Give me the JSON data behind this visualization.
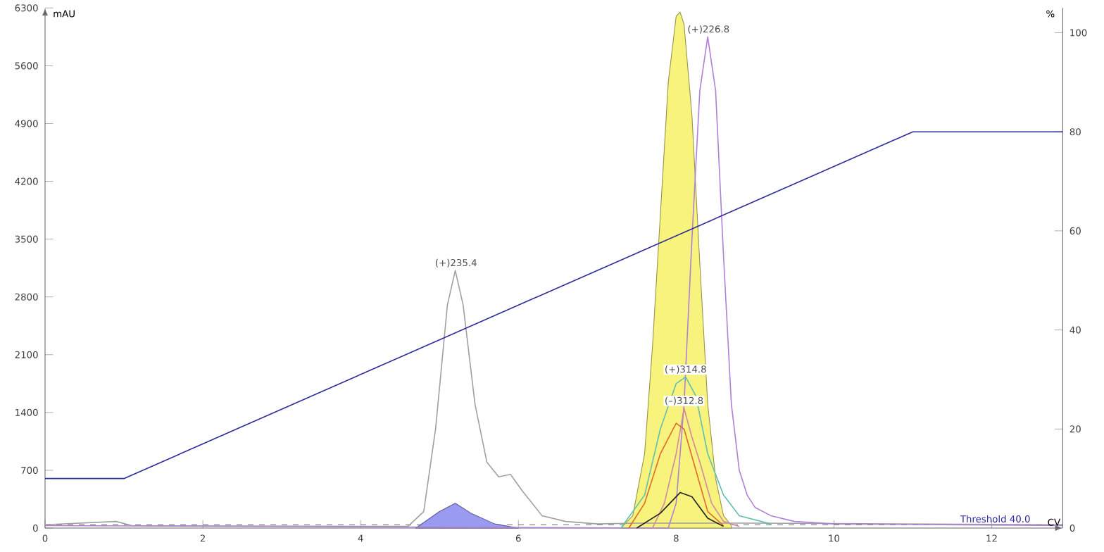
{
  "chart_data": {
    "type": "line",
    "xlabel": "CV",
    "ylabel": "mAU",
    "y2label": "%",
    "xlim": [
      0,
      12.9
    ],
    "xticks": [
      0,
      2,
      4,
      6,
      8,
      10,
      12
    ],
    "ylim": [
      0,
      6300
    ],
    "yticks": [
      0,
      700,
      1400,
      2100,
      2800,
      3500,
      4200,
      4900,
      5600,
      6300
    ],
    "y2lim": [
      0,
      105
    ],
    "y2ticks": [
      0,
      20,
      40,
      60,
      80,
      100
    ],
    "series": [
      {
        "type": "area",
        "color": "#f7f37c",
        "x": [
          7.3,
          7.45,
          7.6,
          7.7,
          7.8,
          7.9,
          8.0,
          8.05,
          8.1,
          8.2,
          8.3,
          8.4,
          8.5,
          8.6,
          8.7
        ],
        "values": [
          0,
          150,
          900,
          2200,
          3800,
          5400,
          6200,
          6250,
          6100,
          5000,
          3200,
          1500,
          600,
          150,
          30
        ]
      },
      {
        "type": "area",
        "color": "#9a9af0",
        "x": [
          4.7,
          5.0,
          5.2,
          5.4,
          5.7,
          6.0
        ],
        "values": [
          0,
          200,
          300,
          180,
          50,
          0
        ]
      },
      {
        "color": "#a0a0a0",
        "x": [
          0,
          0.9,
          1.1,
          4.6,
          4.8,
          4.95,
          5.1,
          5.2,
          5.3,
          5.45,
          5.6,
          5.75,
          5.9,
          6.05,
          6.3,
          6.6,
          7.0,
          7.5,
          9.0,
          12.9
        ],
        "values": [
          40,
          80,
          30,
          20,
          200,
          1200,
          2700,
          3120,
          2700,
          1500,
          800,
          620,
          650,
          450,
          150,
          80,
          50,
          60,
          60,
          40
        ]
      },
      {
        "color": "#b080d8",
        "x": [
          0,
          7.9,
          8.0,
          8.1,
          8.2,
          8.3,
          8.4,
          8.5,
          8.6,
          8.7,
          8.8,
          8.9,
          9.0,
          9.2,
          9.5,
          10,
          12.9
        ],
        "values": [
          30,
          0,
          300,
          1500,
          3500,
          5300,
          5950,
          5300,
          3300,
          1500,
          700,
          400,
          250,
          150,
          80,
          50,
          30
        ]
      },
      {
        "color": "#60c0b0",
        "x": [
          7.3,
          7.6,
          7.8,
          8.0,
          8.12,
          8.25,
          8.4,
          8.6,
          8.8,
          9.2
        ],
        "values": [
          0,
          400,
          1200,
          1750,
          1830,
          1600,
          900,
          400,
          150,
          50
        ]
      },
      {
        "color": "#d08aa0",
        "x": [
          7.7,
          7.85,
          8.0,
          8.1,
          8.2,
          8.3,
          8.45,
          8.6,
          8.8
        ],
        "values": [
          0,
          300,
          900,
          1450,
          1100,
          800,
          300,
          80,
          20
        ]
      },
      {
        "color": "#e06a30",
        "x": [
          7.4,
          7.6,
          7.8,
          8.0,
          8.1,
          8.25,
          8.4,
          8.6
        ],
        "values": [
          0,
          300,
          900,
          1270,
          1200,
          700,
          200,
          30
        ]
      },
      {
        "color": "#202020",
        "x": [
          7.5,
          7.8,
          8.05,
          8.2,
          8.4,
          8.6
        ],
        "values": [
          0,
          180,
          430,
          380,
          120,
          20
        ]
      },
      {
        "color": "#2b2b9a",
        "axis": "y2",
        "x": [
          0,
          1,
          11,
          12.9
        ],
        "values": [
          10,
          10,
          80,
          80
        ]
      }
    ],
    "ref_lines": [
      {
        "axis": "y",
        "value": 40,
        "label": "Threshold 40.0",
        "color": "#888888",
        "line_style": "dashed"
      }
    ],
    "annotations": [
      {
        "text": "(+)226.8",
        "x": 8.41,
        "y": 5950
      },
      {
        "text": "(+)235.4",
        "x": 5.21,
        "y": 3120
      },
      {
        "text": "(+)314.8",
        "x": 8.12,
        "y": 1830
      },
      {
        "text": "(–)312.8",
        "x": 8.1,
        "y": 1450
      }
    ]
  }
}
